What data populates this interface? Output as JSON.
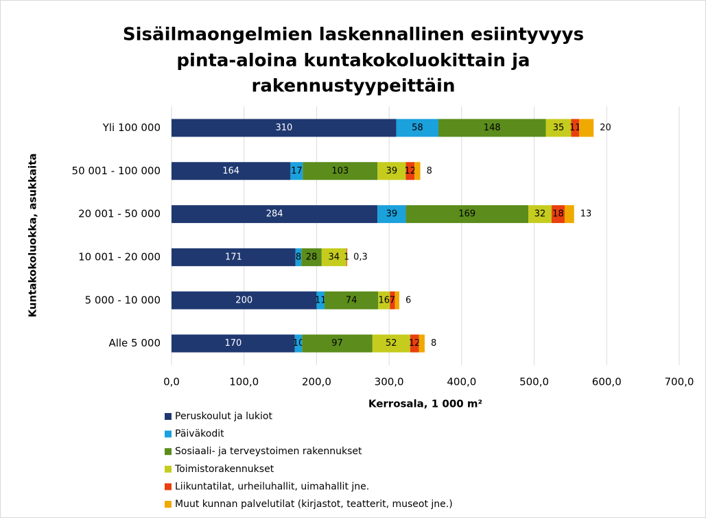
{
  "chart_data": {
    "type": "stacked-barh",
    "title": [
      "Sisäilmaongelmien laskennallinen esiintyvyys",
      "pinta-aloina kuntakokoluokittain ja",
      "rakennustyypeittäin"
    ],
    "x_label": "Kerrosala, 1 000 m²",
    "y_label": "Kuntakokoluokka, asukkaita",
    "categories": [
      "Yli 100 000",
      "50 001 - 100 000",
      "20 001 - 50 000",
      "10 001 - 20 000",
      "5 000 - 10 000",
      "Alle 5 000"
    ],
    "series": [
      {
        "name": "Peruskoulut ja lukiot",
        "color": "#1f3870",
        "values": [
          310,
          164,
          284,
          171,
          200,
          170
        ]
      },
      {
        "name": "Päiväkodit",
        "color": "#1ba1dc",
        "values": [
          58,
          17,
          39,
          8,
          11,
          10
        ]
      },
      {
        "name": "Sosiaali- ja terveystoimen rakennukset",
        "color": "#5b8c1c",
        "values": [
          148,
          103,
          169,
          28,
          74,
          97
        ]
      },
      {
        "name": "Toimistorakennukset",
        "color": "#c5cc1e",
        "values": [
          35,
          39,
          32,
          34,
          16,
          52
        ]
      },
      {
        "name": "Liikuntatilat, urheiluhallit, uimahallit jne.",
        "color": "#e8400e",
        "values": [
          11,
          12,
          18,
          1,
          7,
          12
        ]
      },
      {
        "name": "Muut kunnan palvelutilat (kirjastot, teatterit, museot jne.)",
        "color": "#f0a900",
        "values": [
          20,
          8,
          13,
          0.3,
          6,
          8
        ],
        "value_labels": [
          "20",
          "8",
          "13",
          "0,3",
          "6",
          "8"
        ]
      }
    ],
    "xlim": [
      0,
      700
    ],
    "xticks": [
      {
        "value": 0,
        "label": "0,0"
      },
      {
        "value": 100,
        "label": "100,0"
      },
      {
        "value": 200,
        "label": "200,0"
      },
      {
        "value": 300,
        "label": "300,0"
      },
      {
        "value": 400,
        "label": "400,0"
      },
      {
        "value": 500,
        "label": "500,0"
      },
      {
        "value": 600,
        "label": "600,0"
      },
      {
        "value": 700,
        "label": "700,0"
      }
    ],
    "grid": true
  }
}
